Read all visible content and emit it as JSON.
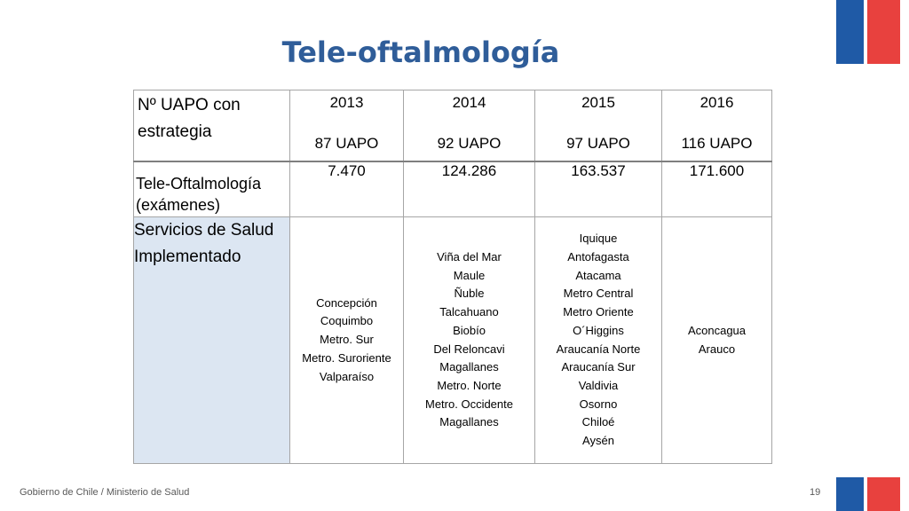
{
  "title": "Tele-oftalmología",
  "table": {
    "header_label": "Nº UAPO con estrategia",
    "years": [
      {
        "year": "2013",
        "uapo": "87 UAPO"
      },
      {
        "year": "2014",
        "uapo": "92 UAPO"
      },
      {
        "year": "2015",
        "uapo": "97 UAPO"
      },
      {
        "year": "2016",
        "uapo": "116 UAPO"
      }
    ],
    "exams_label_line1": "Tele-Oftalmología",
    "exams_label_line2": "(exámenes)",
    "exams": [
      "7.470",
      "124.286",
      "163.537",
      "171.600"
    ],
    "services_label_line1": "Servicios de Salud",
    "services_label_line2": "Implementado",
    "services": [
      [
        "Concepción",
        "Coquimbo",
        "Metro.  Sur",
        "Metro. Suroriente",
        "Valparaíso"
      ],
      [
        "Viña del Mar",
        "Maule",
        "Ñuble",
        "Talcahuano",
        "Biobío",
        "Del Reloncavi",
        "Magallanes",
        "Metro. Norte",
        "Metro. Occidente",
        "Magallanes"
      ],
      [
        "Iquique",
        "Antofagasta",
        "Atacama",
        "Metro Central",
        "Metro Oriente",
        "O´Higgins",
        "Araucanía Norte",
        "Araucanía Sur",
        "Valdivia",
        "Osorno",
        "Chiloé",
        "Aysén"
      ],
      [
        "Aconcagua",
        "Arauco"
      ]
    ]
  },
  "footer": {
    "org": "Gobierno de Chile / Ministerio de Salud",
    "page": "19"
  },
  "colors": {
    "title": "#2f5d99",
    "flag_blue": "#1f5aa6",
    "flag_red": "#e8413e",
    "label_fill": "#dce6f2"
  }
}
